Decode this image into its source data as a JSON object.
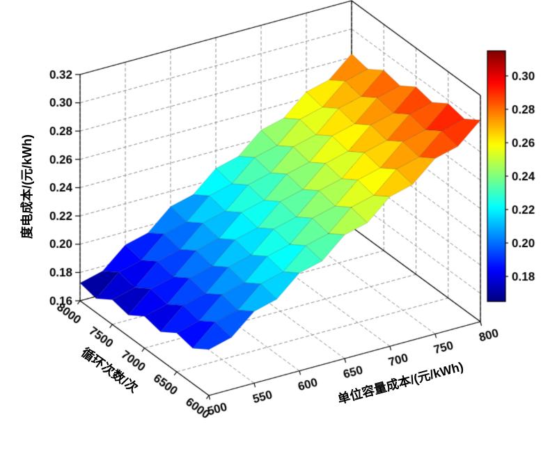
{
  "figure": {
    "background": "#ffffff"
  },
  "chart_data": {
    "type": "surface",
    "title": "",
    "x_axis": {
      "label": "循环次数/次",
      "min": 6000,
      "max": 8000,
      "ticks": [
        8000,
        7500,
        7000,
        6500,
        6000
      ]
    },
    "y_axis": {
      "label": "单位容量成本/(元/kWh)",
      "min": 500,
      "max": 800,
      "ticks": [
        500,
        550,
        600,
        650,
        700,
        750,
        800
      ]
    },
    "z_axis": {
      "label": "度电成本/(元/kWh)",
      "min": 0.16,
      "max": 0.32,
      "ticks": [
        0.16,
        0.18,
        0.2,
        0.22,
        0.24,
        0.26,
        0.28,
        0.3,
        0.32
      ]
    },
    "colorbar": {
      "colormap": "jet",
      "clim": [
        0.165,
        0.315
      ],
      "ticks": [
        0.18,
        0.2,
        0.22,
        0.24,
        0.26,
        0.28,
        0.3
      ]
    },
    "grid": true,
    "surface": {
      "cycles": [
        6000,
        6250,
        6500,
        6750,
        7000,
        7250,
        7500,
        7750,
        8000
      ],
      "capacity_costs": [
        500,
        525,
        550,
        575,
        600,
        625,
        650,
        675,
        700,
        725,
        750,
        775,
        800
      ],
      "values": [
        [
          0.1925,
          0.1967,
          0.2108,
          0.215,
          0.2292,
          0.2333,
          0.2475,
          0.2517,
          0.2658,
          0.27,
          0.2842,
          0.2883,
          0.3025
        ],
        [
          0.185,
          0.1992,
          0.2033,
          0.2175,
          0.2217,
          0.2358,
          0.24,
          0.2542,
          0.2583,
          0.2725,
          0.2767,
          0.2908,
          0.295
        ],
        [
          0.1875,
          0.1917,
          0.2058,
          0.21,
          0.2242,
          0.2283,
          0.2425,
          0.2467,
          0.2608,
          0.265,
          0.2792,
          0.2833,
          0.2975
        ],
        [
          0.18,
          0.1942,
          0.1983,
          0.2125,
          0.2167,
          0.2308,
          0.235,
          0.2492,
          0.2533,
          0.2675,
          0.2717,
          0.2858,
          0.29
        ],
        [
          0.1825,
          0.1867,
          0.2008,
          0.205,
          0.2192,
          0.2233,
          0.2375,
          0.2417,
          0.2558,
          0.26,
          0.2742,
          0.2783,
          0.2925
        ],
        [
          0.175,
          0.1892,
          0.1933,
          0.2075,
          0.2117,
          0.2258,
          0.23,
          0.2442,
          0.2483,
          0.2625,
          0.2667,
          0.2808,
          0.285
        ],
        [
          0.1775,
          0.1817,
          0.1958,
          0.2,
          0.2142,
          0.2183,
          0.2325,
          0.2367,
          0.2508,
          0.255,
          0.2692,
          0.2733,
          0.2875
        ],
        [
          0.17,
          0.1842,
          0.1883,
          0.2025,
          0.2067,
          0.2208,
          0.225,
          0.2392,
          0.2433,
          0.2575,
          0.2617,
          0.2758,
          0.28
        ],
        [
          0.1725,
          0.1767,
          0.1908,
          0.195,
          0.2092,
          0.2133,
          0.2275,
          0.2317,
          0.2458,
          0.25,
          0.2642,
          0.2683,
          0.2825
        ]
      ]
    }
  }
}
